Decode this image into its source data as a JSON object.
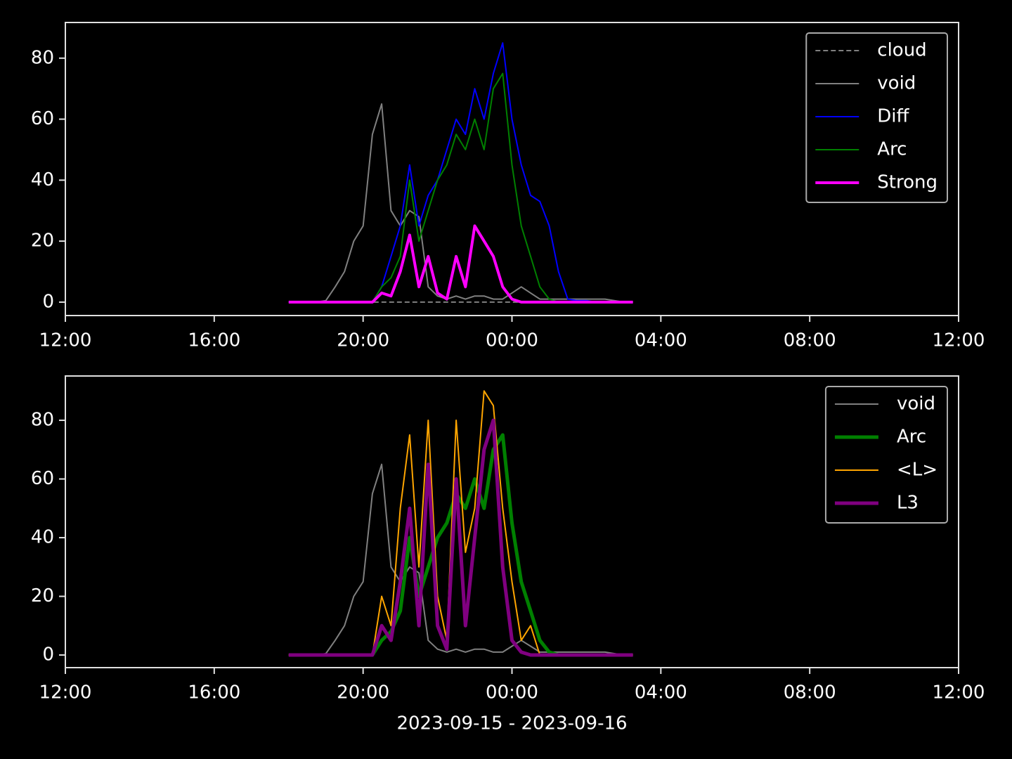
{
  "chart_data": [
    {
      "type": "line",
      "legend": "upper right",
      "xlim": [
        0,
        24
      ],
      "ylim": [
        -4.4,
        91.7
      ],
      "xticks": [
        {
          "value": 0,
          "label": "12:00"
        },
        {
          "value": 4,
          "label": "16:00"
        },
        {
          "value": 8,
          "label": "20:00"
        },
        {
          "value": 12,
          "label": "00:00"
        },
        {
          "value": 16,
          "label": "04:00"
        },
        {
          "value": 20,
          "label": "08:00"
        },
        {
          "value": 24,
          "label": "12:00"
        }
      ],
      "yticks": [
        0,
        20,
        40,
        60,
        80
      ],
      "x": [
        6,
        6.25,
        6.5,
        6.75,
        7,
        7.25,
        7.5,
        7.75,
        8,
        8.25,
        8.5,
        8.75,
        9,
        9.25,
        9.5,
        9.75,
        10,
        10.25,
        10.5,
        10.75,
        11,
        11.25,
        11.5,
        11.75,
        12,
        12.25,
        12.5,
        12.75,
        13,
        13.25,
        13.5,
        13.75,
        14,
        14.25,
        14.5,
        14.75,
        15,
        15.25
      ],
      "series": [
        {
          "name": "cloud",
          "color": "#808080",
          "linestyle": "dashed",
          "linewidth": 2,
          "values": [
            0,
            0,
            0,
            0,
            0,
            0,
            0,
            0,
            0,
            0,
            0,
            0,
            0,
            0,
            0,
            0,
            0,
            0,
            0,
            0,
            0,
            0,
            0,
            0,
            0,
            0,
            0,
            0,
            0,
            0,
            0,
            0,
            0,
            0,
            0,
            0,
            0,
            0
          ]
        },
        {
          "name": "void",
          "color": "#808080",
          "linewidth": 2,
          "values": [
            0,
            0,
            0,
            0,
            0.5,
            5,
            10,
            20,
            25,
            55,
            65,
            30,
            25,
            30,
            28,
            5,
            2,
            1,
            2,
            1,
            2,
            2,
            1,
            1,
            3,
            5,
            3,
            1,
            1,
            1,
            1,
            1,
            1,
            1,
            1,
            0.5,
            0,
            0
          ]
        },
        {
          "name": "Diff",
          "color": "#0000ff",
          "linewidth": 2,
          "values": [
            0,
            0,
            0,
            0,
            0,
            0,
            0,
            0,
            0,
            0,
            5,
            15,
            25,
            45,
            25,
            35,
            40,
            50,
            60,
            55,
            70,
            60,
            75,
            85,
            60,
            45,
            35,
            33,
            25,
            10,
            1,
            0.5,
            0.5,
            0,
            0,
            0,
            0,
            0
          ]
        },
        {
          "name": "Arc",
          "color": "#008000",
          "linewidth": 2,
          "values": [
            0,
            0,
            0,
            0,
            0,
            0,
            0,
            0,
            0,
            0,
            5,
            8,
            15,
            40,
            20,
            30,
            40,
            45,
            55,
            50,
            60,
            50,
            70,
            75,
            45,
            25,
            15,
            5,
            1,
            0,
            0,
            0,
            0,
            0,
            0,
            0,
            0,
            0
          ]
        },
        {
          "name": "Strong",
          "color": "#ff00ff",
          "linewidth": 4,
          "values": [
            0,
            0,
            0,
            0,
            0,
            0,
            0,
            0,
            0,
            0,
            3,
            2,
            10,
            22,
            5,
            15,
            3,
            1,
            15,
            5,
            25,
            20,
            15,
            5,
            1,
            0,
            0,
            0,
            0,
            0,
            0,
            0,
            0,
            0,
            0,
            0,
            0,
            0
          ]
        }
      ]
    },
    {
      "type": "line",
      "legend": "upper right",
      "xlim": [
        0,
        24
      ],
      "ylim": [
        -4.3,
        95.1
      ],
      "xlabel": "2023-09-15 - 2023-09-16",
      "xticks": [
        {
          "value": 0,
          "label": "12:00"
        },
        {
          "value": 4,
          "label": "16:00"
        },
        {
          "value": 8,
          "label": "20:00"
        },
        {
          "value": 12,
          "label": "00:00"
        },
        {
          "value": 16,
          "label": "04:00"
        },
        {
          "value": 20,
          "label": "08:00"
        },
        {
          "value": 24,
          "label": "12:00"
        }
      ],
      "yticks": [
        0,
        20,
        40,
        60,
        80
      ],
      "x": [
        6,
        6.25,
        6.5,
        6.75,
        7,
        7.25,
        7.5,
        7.75,
        8,
        8.25,
        8.5,
        8.75,
        9,
        9.25,
        9.5,
        9.75,
        10,
        10.25,
        10.5,
        10.75,
        11,
        11.25,
        11.5,
        11.75,
        12,
        12.25,
        12.5,
        12.75,
        13,
        13.25,
        13.5,
        13.75,
        14,
        14.25,
        14.5,
        14.75,
        15,
        15.25
      ],
      "series": [
        {
          "name": "void",
          "color": "#808080",
          "linewidth": 2,
          "values": [
            0,
            0,
            0,
            0,
            0.5,
            5,
            10,
            20,
            25,
            55,
            65,
            30,
            25,
            30,
            28,
            5,
            2,
            1,
            2,
            1,
            2,
            2,
            1,
            1,
            3,
            5,
            3,
            1,
            1,
            1,
            1,
            1,
            1,
            1,
            1,
            0.5,
            0,
            0
          ]
        },
        {
          "name": "Arc",
          "color": "#008000",
          "linewidth": 5,
          "values": [
            0,
            0,
            0,
            0,
            0,
            0,
            0,
            0,
            0,
            0,
            5,
            8,
            15,
            40,
            20,
            30,
            40,
            45,
            55,
            50,
            60,
            50,
            70,
            75,
            45,
            25,
            15,
            5,
            1,
            0,
            0,
            0,
            0,
            0,
            0,
            0,
            0,
            0
          ]
        },
        {
          "name": "<L>",
          "color": "#ffa500",
          "linewidth": 2,
          "values": [
            0,
            0,
            0,
            0,
            0,
            0,
            0,
            0,
            0,
            0,
            20,
            10,
            50,
            75,
            30,
            80,
            20,
            5,
            80,
            35,
            50,
            90,
            85,
            50,
            25,
            5,
            10,
            0,
            0,
            0,
            0,
            0,
            0,
            0,
            0,
            0,
            0,
            0
          ]
        },
        {
          "name": "L3",
          "color": "#800080",
          "linewidth": 5,
          "values": [
            0,
            0,
            0,
            0,
            0,
            0,
            0,
            0,
            0,
            0,
            10,
            5,
            25,
            50,
            10,
            65,
            10,
            2,
            60,
            10,
            40,
            70,
            80,
            30,
            5,
            1,
            0,
            0,
            0,
            0,
            0,
            0,
            0,
            0,
            0,
            0,
            0,
            0
          ]
        }
      ]
    }
  ]
}
